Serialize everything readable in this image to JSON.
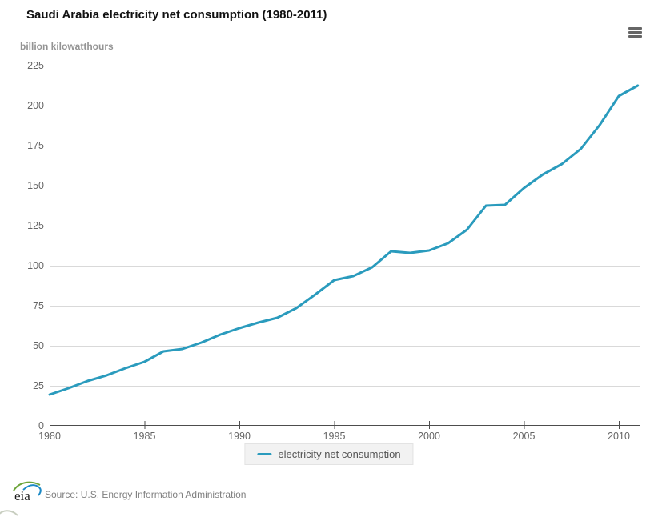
{
  "header": {
    "title": "Saudi Arabia electricity net consumption (1980-2011)",
    "units_label": "billion kilowatthours"
  },
  "chart_data": {
    "type": "line",
    "title": "Saudi Arabia electricity net consumption (1980-2011)",
    "xlabel": "",
    "ylabel": "billion kilowatthours",
    "ylim": [
      0,
      225
    ],
    "xlim": [
      1980,
      2011
    ],
    "yticks": [
      0,
      25,
      50,
      75,
      100,
      125,
      150,
      175,
      200,
      225
    ],
    "xticks": [
      1980,
      1985,
      1990,
      1995,
      2000,
      2005,
      2010
    ],
    "grid": "horizontal",
    "legend_position": "bottom",
    "x": [
      1980,
      1981,
      1982,
      1983,
      1984,
      1985,
      1986,
      1987,
      1988,
      1989,
      1990,
      1991,
      1992,
      1993,
      1994,
      1995,
      1996,
      1997,
      1998,
      1999,
      2000,
      2001,
      2002,
      2003,
      2004,
      2005,
      2006,
      2007,
      2008,
      2009,
      2010,
      2011
    ],
    "series": [
      {
        "name": "electricity net consumption",
        "color": "#2a9bbd",
        "values": [
          19.5,
          23.5,
          28,
          31.5,
          36,
          40,
          46.5,
          48,
          52,
          57,
          61,
          64.5,
          67.5,
          73.5,
          82,
          91,
          93.5,
          99,
          109,
          108,
          109.5,
          114,
          122.5,
          137.5,
          138,
          148.5,
          157,
          163.5,
          173,
          188,
          206,
          212.5
        ]
      }
    ]
  },
  "legend": {
    "items": [
      {
        "label": "electricity net consumption",
        "color": "#2a9bbd"
      }
    ]
  },
  "menu": {
    "icon": "hamburger-menu-icon"
  },
  "footer": {
    "logo_text": "eia",
    "source": "Source: U.S. Energy Information Administration"
  },
  "colors": {
    "line": "#2a9bbd",
    "gridline": "#d9d9d9",
    "axis": "#4d4d4d",
    "axis_label": "#666666",
    "legend_bg": "#f2f2f2",
    "title": "#111111"
  }
}
